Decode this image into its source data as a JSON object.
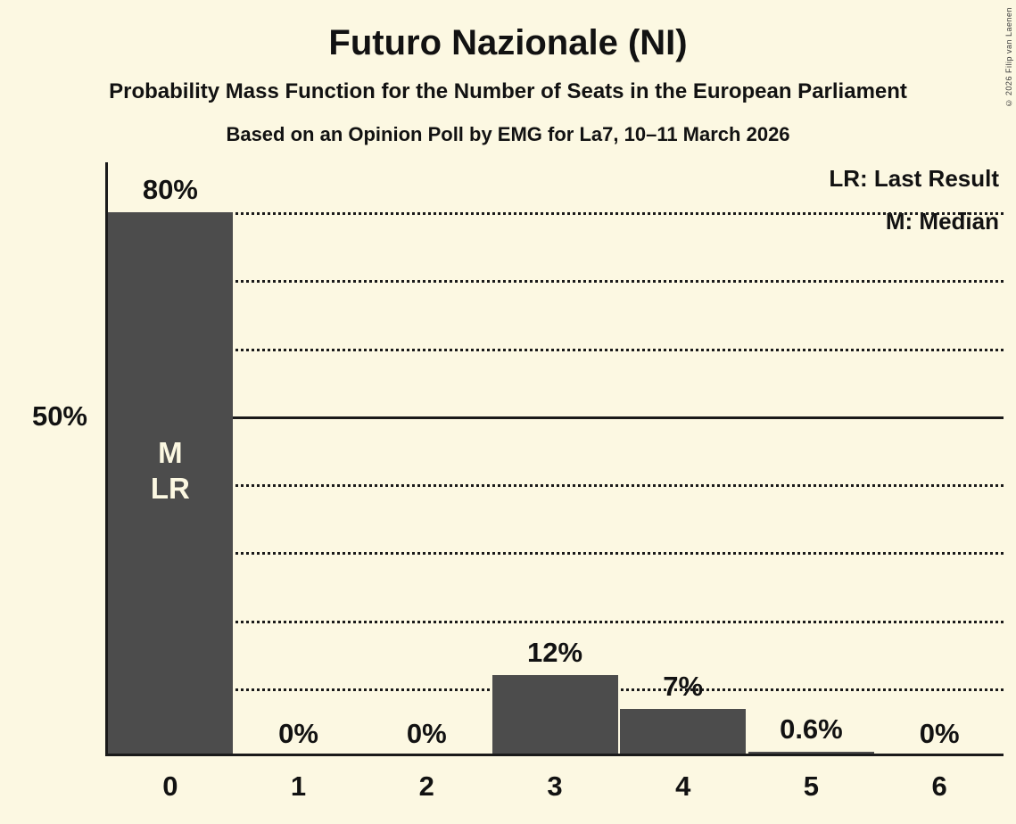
{
  "header": {
    "title": "Futuro Nazionale (NI)",
    "subtitle": "Probability Mass Function for the Number of Seats in the European Parliament",
    "based_on": "Based on an Opinion Poll by EMG for La7, 10–11 March 2026",
    "copyright": "© 2026 Filip van Laenen"
  },
  "legend": {
    "last_result": "LR: Last Result",
    "median": "M: Median"
  },
  "chart_data": {
    "type": "bar",
    "title": "Futuro Nazionale (NI)",
    "xlabel": "",
    "ylabel": "",
    "categories": [
      "0",
      "1",
      "2",
      "3",
      "4",
      "5",
      "6"
    ],
    "values": [
      80,
      0,
      0,
      12,
      7,
      0.6,
      0
    ],
    "bar_labels": [
      "80%",
      "0%",
      "0%",
      "12%",
      "7%",
      "0.6%",
      "0%"
    ],
    "ylim": [
      0,
      80
    ],
    "y_axis_label": {
      "value": 50,
      "text": "50%"
    },
    "gridlines": {
      "dotted": [
        10,
        20,
        30,
        40,
        60,
        70,
        80
      ],
      "solid": [
        50
      ]
    },
    "legend_position": "top-right",
    "bar_annotations": [
      {
        "index": 0,
        "lines": [
          "M",
          "LR"
        ]
      }
    ],
    "colors": {
      "background": "#FCF8E2",
      "bar": "#4C4C4C",
      "text": "#121212",
      "annotation_text": "#FCF8E2"
    }
  }
}
